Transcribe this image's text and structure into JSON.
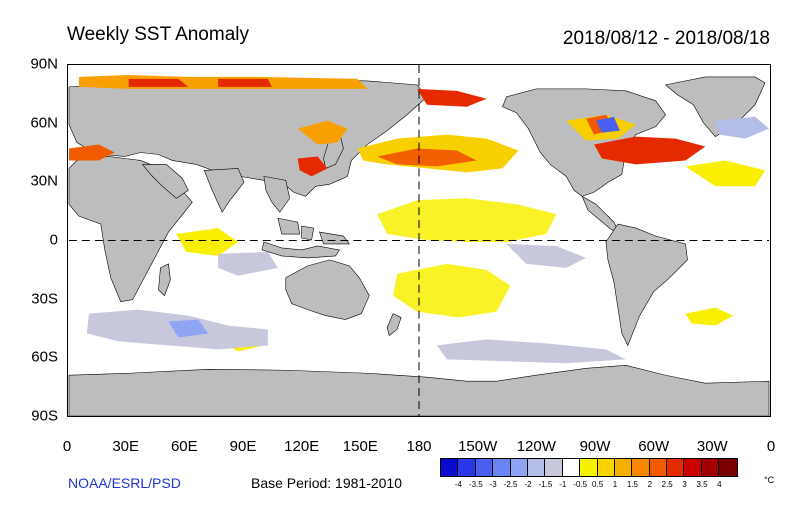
{
  "title": "Weekly SST Anomaly",
  "date_range": "2018/08/12 - 2018/08/18",
  "lat_labels": [
    "90N",
    "60N",
    "30N",
    "0",
    "30S",
    "60S",
    "90S"
  ],
  "lon_labels": [
    "0",
    "30E",
    "60E",
    "90E",
    "120E",
    "150E",
    "180",
    "150W",
    "120W",
    "90W",
    "60W",
    "30W",
    "0"
  ],
  "credit": "NOAA/ESRL/PSD",
  "base_period": "Base Period: 1981-2010",
  "colorbar": {
    "ticks": [
      "-4",
      "-3.5",
      "-3",
      "-2.5",
      "-2",
      "-1.5",
      "-1",
      "-0.5",
      "0.5",
      "1",
      "1.5",
      "2",
      "2.5",
      "3",
      "3.5",
      "4"
    ],
    "colors": [
      "#0a0ad0",
      "#2a37e6",
      "#4a5ef0",
      "#6b84f4",
      "#8fa4f2",
      "#b4bde8",
      "#c8c8dc",
      "#ffffff",
      "#f4f400",
      "#f8d400",
      "#f8b000",
      "#f88800",
      "#f25a00",
      "#e62a00",
      "#cc0000",
      "#a00000",
      "#780000"
    ],
    "unit": "°C"
  },
  "colors": {
    "land": "#bdbdbd",
    "ocean": "#ffffff",
    "credit": "#2233cc"
  }
}
